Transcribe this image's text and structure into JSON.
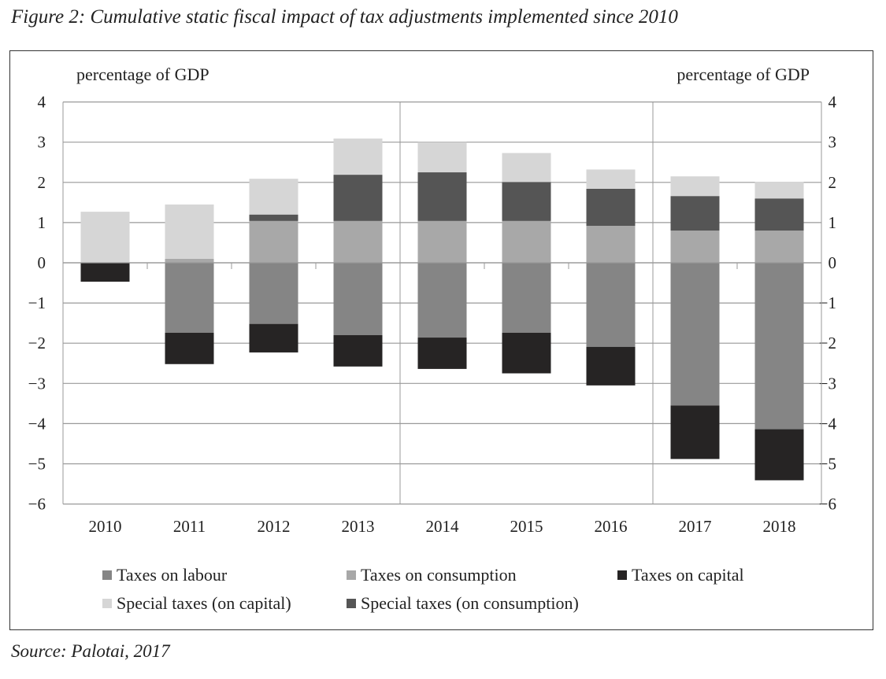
{
  "chart_data": {
    "type": "bar",
    "stacked": true,
    "title": "Figure 2: Cumulative static fiscal impact of tax adjustments implemented since 2010",
    "source": "Source: Palotai, 2017",
    "ylabel_left": "percentage of GDP",
    "ylabel_right": "percentage of GDP",
    "ylim": [
      -6,
      4
    ],
    "yticks": [
      "4",
      "3",
      "2",
      "1",
      "0",
      "−1",
      "−2",
      "−3",
      "−4",
      "−5",
      "−6"
    ],
    "ytick_values": [
      4,
      3,
      2,
      1,
      0,
      -1,
      -2,
      -3,
      -4,
      -5,
      -6
    ],
    "grid": true,
    "legend_position": "bottom",
    "categories": [
      "2010",
      "2011",
      "2012",
      "2013",
      "2014",
      "2015",
      "2016",
      "2017",
      "2018"
    ],
    "series": [
      {
        "name": "Taxes on labour",
        "color": "#858585",
        "values": [
          0,
          -1.74,
          -1.52,
          -1.8,
          -1.86,
          -1.74,
          -2.09,
          -3.55,
          -4.14
        ]
      },
      {
        "name": "Taxes on consumption",
        "color": "#a8a8a8",
        "values": [
          0,
          0.1,
          1.04,
          1.04,
          1.04,
          1.04,
          0.92,
          0.8,
          0.8
        ]
      },
      {
        "name": "Taxes on capital",
        "color": "#262424",
        "values": [
          -0.47,
          -0.78,
          -0.71,
          -0.78,
          -0.78,
          -1.01,
          -0.96,
          -1.33,
          -1.27
        ]
      },
      {
        "name": "Special taxes (on capital)",
        "color": "#d6d6d6",
        "values": [
          1.27,
          1.35,
          0.89,
          0.9,
          0.75,
          0.72,
          0.48,
          0.49,
          0.41
        ]
      },
      {
        "name": "Special taxes (on consumption)",
        "color": "#555555",
        "values": [
          0,
          0,
          0.16,
          1.15,
          1.21,
          0.97,
          0.92,
          0.86,
          0.8
        ]
      }
    ],
    "stack_order_positive": [
      1,
      4,
      3
    ],
    "stack_order_negative": [
      0,
      2
    ],
    "vertical_separators_after": [
      "2013",
      "2016"
    ]
  }
}
